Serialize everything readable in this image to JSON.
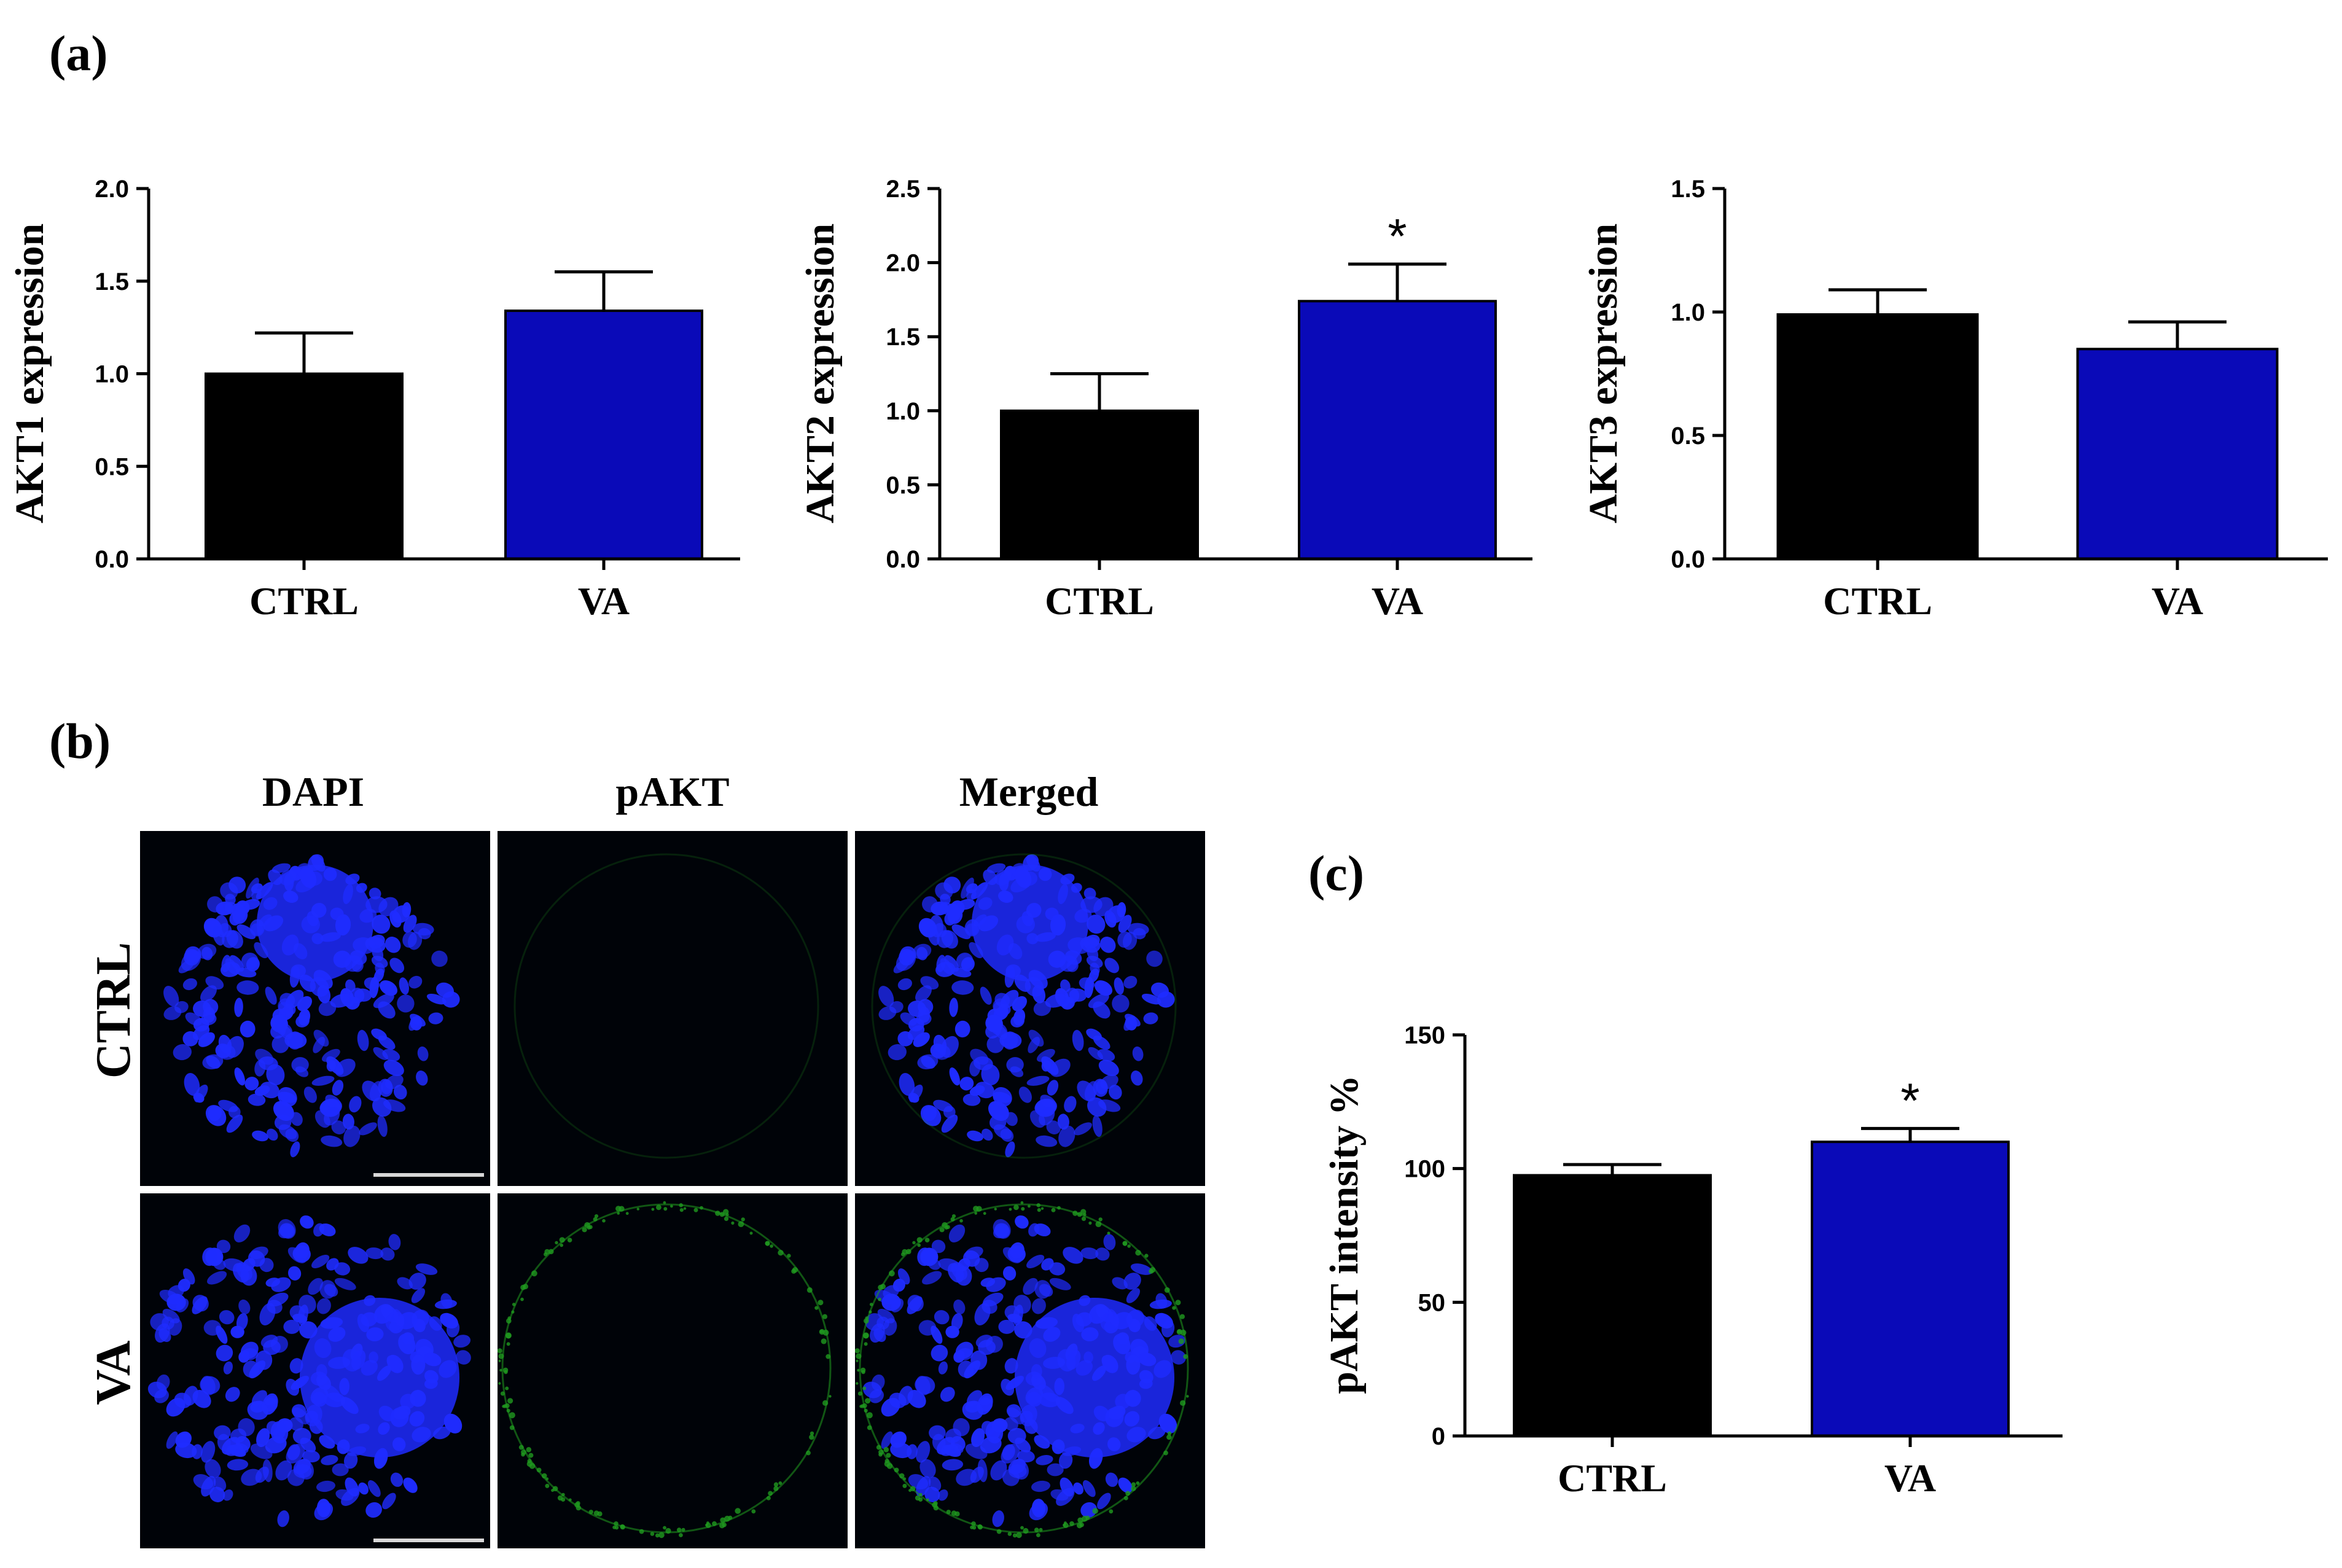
{
  "figure": {
    "panel_labels": {
      "a": "(a)",
      "b": "(b)",
      "c": "(c)"
    },
    "microscopy": {
      "columns": [
        "DAPI",
        "pAKT",
        "Merged"
      ],
      "rows": [
        "CTRL",
        "VA"
      ]
    },
    "colors": {
      "ctrl": "#000000",
      "va": "#0a0ab8",
      "dapi": "#1f2cff",
      "pakt": "#1f9a1f"
    }
  },
  "chart_data": [
    {
      "id": "akt1",
      "type": "bar",
      "categories": [
        "CTRL",
        "VA"
      ],
      "values": [
        1.0,
        1.34
      ],
      "errors": [
        0.22,
        0.21
      ],
      "significance": [
        "",
        ""
      ],
      "ylabel": "AKT1 expression",
      "ylim": [
        0,
        2.0
      ],
      "yticks": [
        "0.0",
        "0.5",
        "1.0",
        "1.5",
        "2.0"
      ],
      "ytick_values": [
        0,
        0.5,
        1.0,
        1.5,
        2.0
      ]
    },
    {
      "id": "akt2",
      "type": "bar",
      "categories": [
        "CTRL",
        "VA"
      ],
      "values": [
        1.0,
        1.74
      ],
      "errors": [
        0.25,
        0.25
      ],
      "significance": [
        "",
        "*"
      ],
      "ylabel": "AKT2 expression",
      "ylim": [
        0,
        2.5
      ],
      "yticks": [
        "0.0",
        "0.5",
        "1.0",
        "1.5",
        "2.0",
        "2.5"
      ],
      "ytick_values": [
        0,
        0.5,
        1.0,
        1.5,
        2.0,
        2.5
      ]
    },
    {
      "id": "akt3",
      "type": "bar",
      "categories": [
        "CTRL",
        "VA"
      ],
      "values": [
        0.99,
        0.85
      ],
      "errors": [
        0.1,
        0.11
      ],
      "significance": [
        "",
        ""
      ],
      "ylabel": "AKT3 expression",
      "ylim": [
        0,
        1.5
      ],
      "yticks": [
        "0.0",
        "0.5",
        "1.0",
        "1.5"
      ],
      "ytick_values": [
        0,
        0.5,
        1.0,
        1.5
      ]
    },
    {
      "id": "pakt",
      "type": "bar",
      "categories": [
        "CTRL",
        "VA"
      ],
      "values": [
        97.5,
        110
      ],
      "errors": [
        4,
        5
      ],
      "significance": [
        "",
        "*"
      ],
      "ylabel": "pAKT intensity %",
      "ylim": [
        0,
        150
      ],
      "yticks": [
        "0",
        "50",
        "100",
        "150"
      ],
      "ytick_values": [
        0,
        50,
        100,
        150
      ]
    }
  ]
}
